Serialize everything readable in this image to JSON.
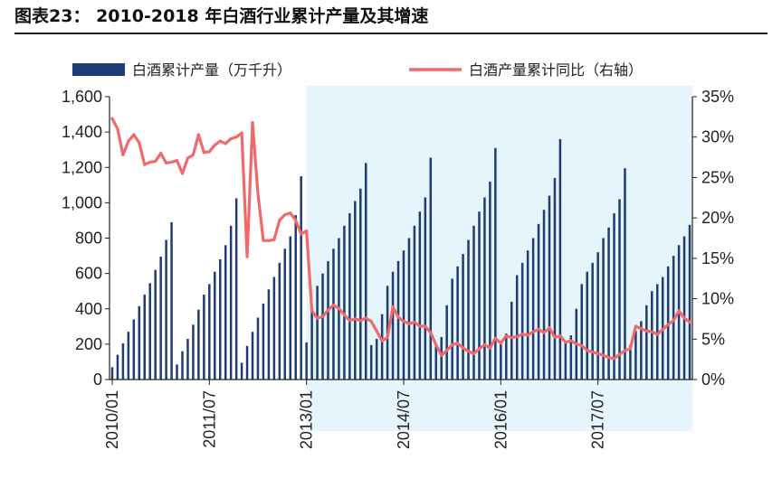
{
  "title": {
    "label": "图表23：",
    "text": "2010-2018 年白酒行业累计产量及其增速"
  },
  "chart_data": {
    "type": "bar+line",
    "legend": {
      "placement": "top",
      "items": [
        "白酒累计产量（万千升）",
        "白酒产量累计同比（右轴）"
      ]
    },
    "colors": {
      "bar": "#1F3C73",
      "line": "#F06A6C",
      "shade": "#E6F4FB"
    },
    "left_axis": {
      "min": 0,
      "max": 1600,
      "ticks": [
        "0",
        "200",
        "400",
        "600",
        "800",
        "1,000",
        "1,200",
        "1,400",
        "1,600"
      ]
    },
    "right_axis": {
      "min": 0,
      "max": 35,
      "ticks": [
        "0%",
        "5%",
        "10%",
        "15%",
        "20%",
        "25%",
        "30%",
        "35%"
      ]
    },
    "x_tick_labels": [
      "2010/01",
      "2011/07",
      "2013/01",
      "2014/07",
      "2016/01",
      "2017/07"
    ],
    "shaded_period": {
      "from": "2013/01",
      "to": "2018/12"
    },
    "series": [
      {
        "name": "白酒累计产量（万千升）",
        "kind": "bar",
        "axis": "left",
        "x": [
          "2010/01",
          "2010/02",
          "2010/03",
          "2010/04",
          "2010/05",
          "2010/06",
          "2010/07",
          "2010/08",
          "2010/09",
          "2010/10",
          "2010/11",
          "2010/12",
          "2011/01",
          "2011/02",
          "2011/03",
          "2011/04",
          "2011/05",
          "2011/06",
          "2011/07",
          "2011/08",
          "2011/09",
          "2011/10",
          "2011/11",
          "2011/12",
          "2012/01",
          "2012/02",
          "2012/03",
          "2012/04",
          "2012/05",
          "2012/06",
          "2012/07",
          "2012/08",
          "2012/09",
          "2012/10",
          "2012/11",
          "2012/12",
          "2013/01",
          "2013/02",
          "2013/03",
          "2013/04",
          "2013/05",
          "2013/06",
          "2013/07",
          "2013/08",
          "2013/09",
          "2013/10",
          "2013/11",
          "2013/12",
          "2014/01",
          "2014/02",
          "2014/03",
          "2014/04",
          "2014/05",
          "2014/06",
          "2014/07",
          "2014/08",
          "2014/09",
          "2014/10",
          "2014/11",
          "2014/12",
          "2015/01",
          "2015/02",
          "2015/03",
          "2015/04",
          "2015/05",
          "2015/06",
          "2015/07",
          "2015/08",
          "2015/09",
          "2015/10",
          "2015/11",
          "2015/12",
          "2016/01",
          "2016/02",
          "2016/03",
          "2016/04",
          "2016/05",
          "2016/06",
          "2016/07",
          "2016/08",
          "2016/09",
          "2016/10",
          "2016/11",
          "2016/12",
          "2017/01",
          "2017/02",
          "2017/03",
          "2017/04",
          "2017/05",
          "2017/06",
          "2017/07",
          "2017/08",
          "2017/09",
          "2017/10",
          "2017/11",
          "2017/12",
          "2018/01",
          "2018/02",
          "2018/03",
          "2018/04",
          "2018/05",
          "2018/06",
          "2018/07",
          "2018/08",
          "2018/09",
          "2018/10",
          "2018/11",
          "2018/12"
        ],
        "values": [
          70,
          140,
          205,
          270,
          340,
          415,
          480,
          545,
          620,
          695,
          790,
          890,
          85,
          160,
          230,
          310,
          395,
          480,
          540,
          610,
          680,
          760,
          870,
          1025,
          95,
          190,
          270,
          350,
          430,
          510,
          580,
          660,
          740,
          810,
          930,
          1150,
          210,
          410,
          530,
          600,
          670,
          740,
          800,
          870,
          940,
          1010,
          1080,
          1225,
          195,
          230,
          370,
          530,
          610,
          670,
          730,
          800,
          870,
          950,
          1030,
          1255,
          200,
          240,
          420,
          570,
          640,
          710,
          790,
          870,
          950,
          1030,
          1120,
          1310,
          220,
          260,
          440,
          590,
          660,
          730,
          800,
          880,
          960,
          1040,
          1140,
          1360,
          215,
          250,
          400,
          540,
          610,
          660,
          720,
          800,
          860,
          940,
          1020,
          1195,
          195,
          275,
          330,
          420,
          500,
          540,
          580,
          640,
          700,
          760,
          810,
          875
        ]
      },
      {
        "name": "白酒产量累计同比（右轴）",
        "kind": "line",
        "axis": "right",
        "x": [
          "2010/01",
          "2010/02",
          "2010/03",
          "2010/04",
          "2010/05",
          "2010/06",
          "2010/07",
          "2010/08",
          "2010/09",
          "2010/10",
          "2010/11",
          "2010/12",
          "2011/01",
          "2011/02",
          "2011/03",
          "2011/04",
          "2011/05",
          "2011/06",
          "2011/07",
          "2011/08",
          "2011/09",
          "2011/10",
          "2011/11",
          "2011/12",
          "2012/01",
          "2012/02",
          "2012/03",
          "2012/04",
          "2012/05",
          "2012/06",
          "2012/07",
          "2012/08",
          "2012/09",
          "2012/10",
          "2012/11",
          "2012/12",
          "2013/01",
          "2013/02",
          "2013/03",
          "2013/04",
          "2013/05",
          "2013/06",
          "2013/07",
          "2013/08",
          "2013/09",
          "2013/10",
          "2013/11",
          "2013/12",
          "2014/01",
          "2014/02",
          "2014/03",
          "2014/04",
          "2014/05",
          "2014/06",
          "2014/07",
          "2014/08",
          "2014/09",
          "2014/10",
          "2014/11",
          "2014/12",
          "2015/01",
          "2015/02",
          "2015/03",
          "2015/04",
          "2015/05",
          "2015/06",
          "2015/07",
          "2015/08",
          "2015/09",
          "2015/10",
          "2015/11",
          "2015/12",
          "2016/01",
          "2016/02",
          "2016/03",
          "2016/04",
          "2016/05",
          "2016/06",
          "2016/07",
          "2016/08",
          "2016/09",
          "2016/10",
          "2016/11",
          "2016/12",
          "2017/01",
          "2017/02",
          "2017/03",
          "2017/04",
          "2017/05",
          "2017/06",
          "2017/07",
          "2017/08",
          "2017/09",
          "2017/10",
          "2017/11",
          "2017/12",
          "2018/01",
          "2018/02",
          "2018/03",
          "2018/04",
          "2018/05",
          "2018/06",
          "2018/07",
          "2018/08",
          "2018/09",
          "2018/10",
          "2018/11",
          "2018/12"
        ],
        "values": [
          32.3,
          31.0,
          27.8,
          29.5,
          30.3,
          29.3,
          26.6,
          26.9,
          27.0,
          28.0,
          26.8,
          26.9,
          27.1,
          25.5,
          27.4,
          27.8,
          30.3,
          28.1,
          28.2,
          29.0,
          29.5,
          29.2,
          29.8,
          30.0,
          30.5,
          15.2,
          31.8,
          23.0,
          17.2,
          17.2,
          17.3,
          19.7,
          20.4,
          20.6,
          19.7,
          18.0,
          18.4,
          8.5,
          7.6,
          7.8,
          8.6,
          9.2,
          8.8,
          8.0,
          7.3,
          7.5,
          7.3,
          7.6,
          7.2,
          6.0,
          4.8,
          5.2,
          9.0,
          7.7,
          7.2,
          6.9,
          7.1,
          6.6,
          6.6,
          5.8,
          4.3,
          3.0,
          3.6,
          4.3,
          4.5,
          3.9,
          3.5,
          3.2,
          3.8,
          4.3,
          3.9,
          5.1,
          4.5,
          5.4,
          5.2,
          5.3,
          5.6,
          5.5,
          5.9,
          6.2,
          5.8,
          6.4,
          5.2,
          5.4,
          4.6,
          4.8,
          4.4,
          4.2,
          3.6,
          3.4,
          3.2,
          3.0,
          2.7,
          2.6,
          3.1,
          3.6,
          3.8,
          6.6,
          6.3,
          6.0,
          5.9,
          5.6,
          6.2,
          6.8,
          7.3,
          8.5,
          7.6,
          7.1
        ]
      }
    ]
  }
}
